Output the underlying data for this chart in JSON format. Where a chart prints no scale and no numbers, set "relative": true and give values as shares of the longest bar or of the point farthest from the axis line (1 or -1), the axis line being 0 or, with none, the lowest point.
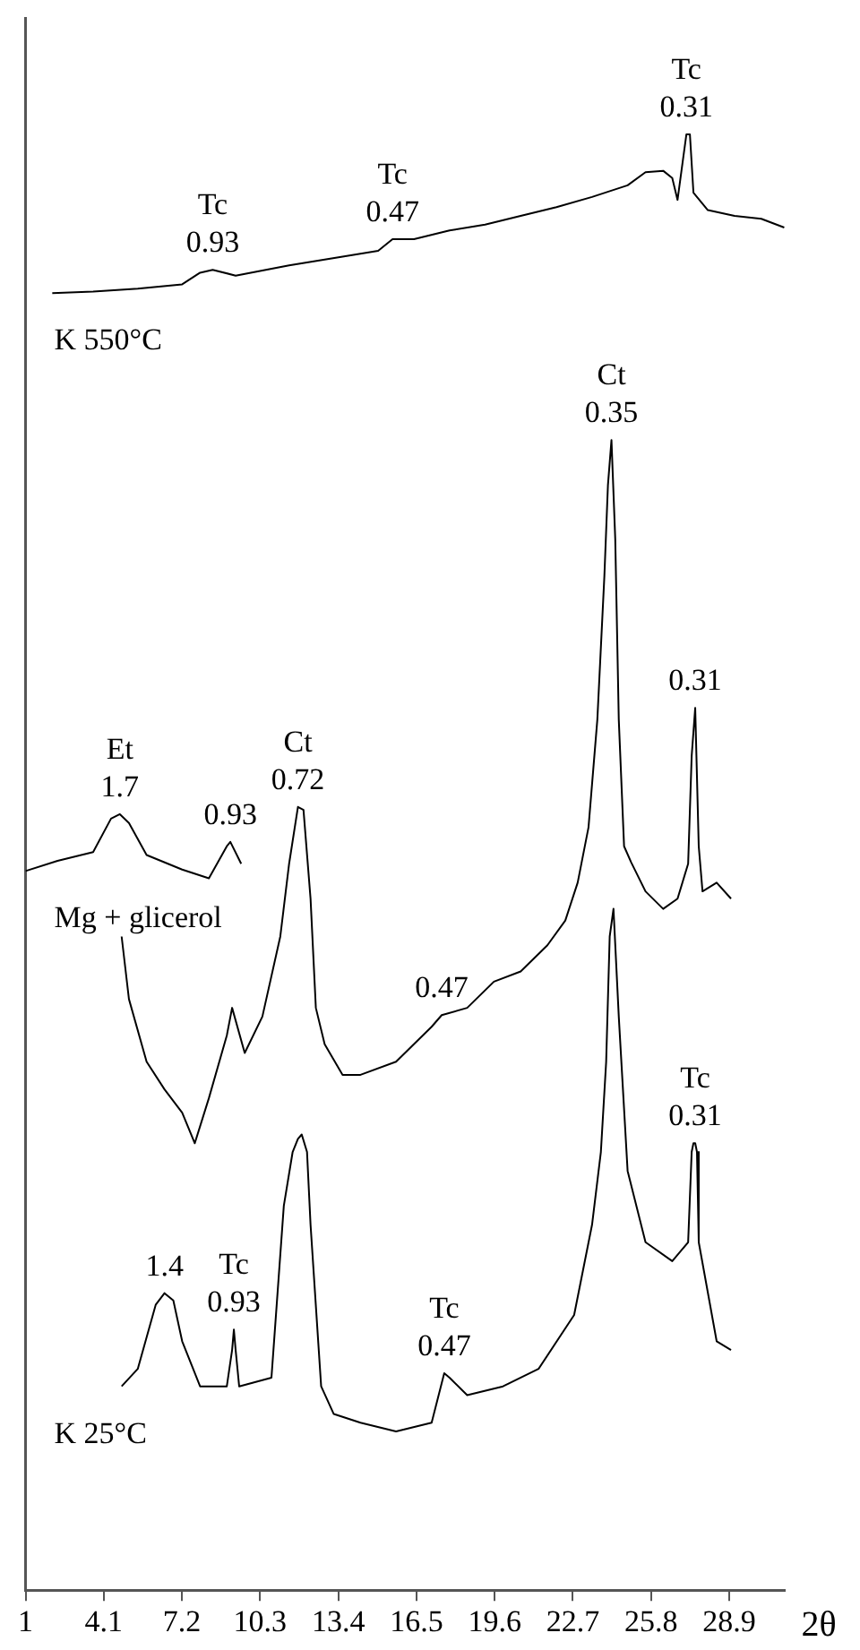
{
  "chart_data": {
    "type": "line",
    "relative": true,
    "xlabel": "2θ",
    "xlim": [
      1,
      31.1
    ],
    "xticks": [
      1,
      4.1,
      7.2,
      10.3,
      13.4,
      16.5,
      19.6,
      22.7,
      25.8,
      28.9
    ],
    "marker": "none",
    "legend": false,
    "grid": false,
    "series": [
      {
        "name": "K 550°C",
        "color": "#000000",
        "x": [
          2.06,
          3.68,
          5.45,
          7.21,
          7.92,
          8.42,
          9.33,
          11.45,
          13.57,
          14.98,
          15.55,
          16.4,
          17.81,
          19.22,
          20.63,
          22.05,
          23.46,
          24.87,
          25.58,
          26.28,
          26.64,
          26.85,
          27.2,
          27.34,
          27.48,
          28.05,
          29.11,
          30.17,
          31.08
        ],
        "values": [
          0.891,
          0.892,
          0.894,
          0.897,
          0.905,
          0.907,
          0.903,
          0.91,
          0.916,
          0.92,
          0.928,
          0.928,
          0.934,
          0.938,
          0.944,
          0.95,
          0.957,
          0.965,
          0.974,
          0.975,
          0.97,
          0.955,
          1.0,
          1.0,
          0.96,
          0.948,
          0.944,
          0.942,
          0.936
        ]
      },
      {
        "name": "Mg + glicerol",
        "color": "#000000",
        "x": [
          1.0,
          2.27,
          3.68,
          4.39,
          4.74,
          5.1,
          5.8,
          7.21,
          8.27,
          8.98,
          9.12,
          9.55
        ],
        "values": [
          0.494,
          0.501,
          0.507,
          0.53,
          0.533,
          0.527,
          0.505,
          0.495,
          0.489,
          0.511,
          0.514,
          0.499
        ]
      },
      {
        "color": "#000000",
        "x": [
          4.81,
          5.1,
          5.8,
          6.51,
          7.21,
          7.71,
          8.27,
          8.98,
          9.19,
          9.69,
          10.39,
          11.1,
          11.45,
          11.8,
          12.02,
          12.3,
          12.51,
          12.86,
          13.57,
          14.28,
          15.69,
          17.1,
          17.5,
          18.51,
          19.57,
          20.63,
          21.69,
          22.4,
          22.89,
          23.32,
          23.67,
          23.95,
          24.09,
          24.23,
          24.38,
          24.52,
          24.73,
          25.01,
          25.58,
          26.28,
          26.85,
          27.27,
          27.41,
          27.55,
          27.69,
          27.84,
          28.4,
          28.97
        ],
        "values": [
          0.449,
          0.406,
          0.363,
          0.344,
          0.328,
          0.307,
          0.338,
          0.381,
          0.4,
          0.369,
          0.394,
          0.449,
          0.499,
          0.538,
          0.536,
          0.475,
          0.4,
          0.375,
          0.354,
          0.354,
          0.363,
          0.387,
          0.395,
          0.4,
          0.418,
          0.425,
          0.443,
          0.46,
          0.486,
          0.524,
          0.598,
          0.697,
          0.759,
          0.79,
          0.722,
          0.598,
          0.511,
          0.5,
          0.48,
          0.468,
          0.475,
          0.499,
          0.573,
          0.606,
          0.511,
          0.48,
          0.486,
          0.475
        ]
      },
      {
        "name": "K 25°C",
        "color": "#000000",
        "x": [
          4.81,
          5.45,
          6.16,
          6.51,
          6.86,
          7.21,
          7.92,
          8.98,
          9.19,
          9.26,
          9.33,
          9.47,
          10.75,
          11.24,
          11.59,
          11.8,
          11.95,
          12.16,
          12.3,
          12.72,
          13.22,
          14.28,
          15.69,
          17.1,
          17.6,
          17.81,
          18.51,
          19.93,
          21.34,
          22.75,
          23.46,
          23.81,
          24.02,
          24.16,
          24.31,
          24.52,
          24.87,
          25.58,
          26.64,
          27.27,
          27.41,
          27.48,
          27.55,
          27.62,
          27.69,
          28.4,
          28.97
        ],
        "values": [
          0.14,
          0.152,
          0.196,
          0.204,
          0.199,
          0.171,
          0.14,
          0.14,
          0.165,
          0.179,
          0.165,
          0.14,
          0.146,
          0.264,
          0.301,
          0.31,
          0.313,
          0.301,
          0.251,
          0.14,
          0.121,
          0.115,
          0.109,
          0.115,
          0.149,
          0.146,
          0.134,
          0.14,
          0.152,
          0.189,
          0.251,
          0.301,
          0.363,
          0.449,
          0.468,
          0.394,
          0.288,
          0.239,
          0.226,
          0.239,
          0.301,
          0.307,
          0.307,
          0.301,
          0.239,
          0.171,
          0.165
        ]
      }
    ],
    "annotations": [
      {
        "text": "Tc\n0.93",
        "x": 8.42,
        "y": 0.907
      },
      {
        "text": "Tc\n0.47",
        "x": 15.55,
        "y": 0.928
      },
      {
        "text": "Tc\n0.31",
        "x": 27.2,
        "y": 1.0
      },
      {
        "text": "Et\n1.7",
        "x": 4.74,
        "y": 0.533
      },
      {
        "text": "0.93",
        "x": 9.12,
        "y": 0.514
      },
      {
        "text": "Ct\n0.72",
        "x": 11.8,
        "y": 0.538
      },
      {
        "text": "0.47",
        "x": 17.5,
        "y": 0.395
      },
      {
        "text": "Ct\n0.35",
        "x": 24.23,
        "y": 0.79
      },
      {
        "text": "0.31",
        "x": 27.55,
        "y": 0.606
      },
      {
        "text": "1.4",
        "x": 6.51,
        "y": 0.204
      },
      {
        "text": "Tc\n0.93",
        "x": 9.26,
        "y": 0.179
      },
      {
        "text": "Tc\n0.47",
        "x": 17.6,
        "y": 0.149
      },
      {
        "text": "Tc\n0.31",
        "x": 27.55,
        "y": 0.307
      }
    ]
  }
}
